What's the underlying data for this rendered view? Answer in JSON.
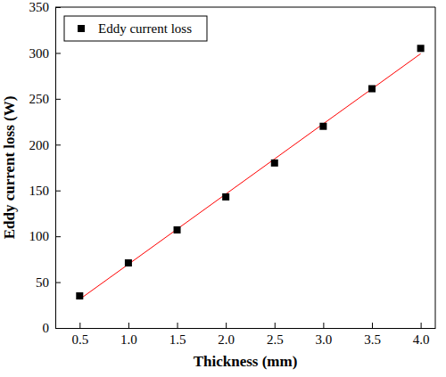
{
  "chart_data": {
    "type": "scatter",
    "x_label": "Thickness (mm)",
    "y_label": "Eddy current loss (W)",
    "x": [
      0.5,
      1.0,
      1.5,
      2.0,
      2.5,
      3.0,
      3.5,
      4.0
    ],
    "series": [
      {
        "name": "Eddy current loss",
        "type": "scatter",
        "marker": "square",
        "color": "#000000",
        "values": [
          35,
          71,
          107,
          143,
          180,
          220,
          261,
          305
        ]
      },
      {
        "type": "line",
        "line_style": "solid",
        "color": "#ff0000",
        "values": [
          31.3,
          69.5,
          107.8,
          146.1,
          184.4,
          222.7,
          260.9,
          299.2
        ]
      }
    ],
    "xlim": [
      0.25,
      4.15
    ],
    "ylim": [
      0,
      350
    ],
    "xticks": [
      {
        "value": 0.5,
        "label": "0.5"
      },
      {
        "value": 1.0,
        "label": "1.0"
      },
      {
        "value": 1.5,
        "label": "1.5"
      },
      {
        "value": 2.0,
        "label": "2.0"
      },
      {
        "value": 2.5,
        "label": "2.5"
      },
      {
        "value": 3.0,
        "label": "3.0"
      },
      {
        "value": 3.5,
        "label": "3.5"
      },
      {
        "value": 4.0,
        "label": "4.0"
      }
    ],
    "yticks": [
      0,
      50,
      100,
      150,
      200,
      250,
      300,
      350
    ],
    "grid": false,
    "legend": "upper left"
  }
}
